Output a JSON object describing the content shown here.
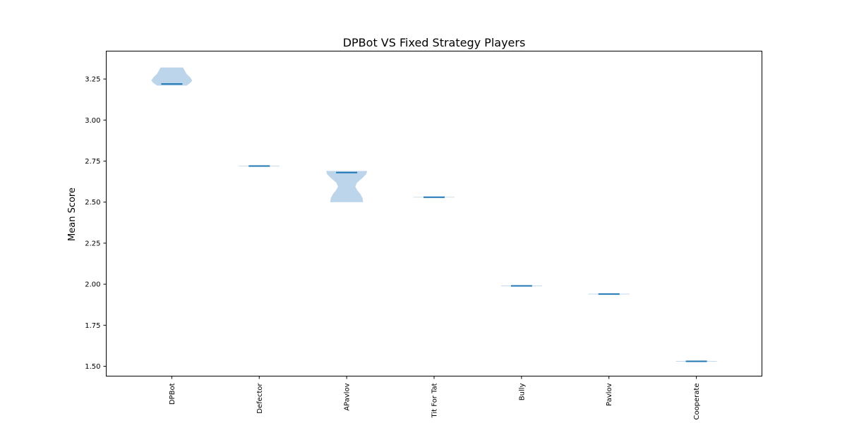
{
  "chart_data": {
    "type": "violin",
    "title": "DPBot VS Fixed Strategy Players",
    "xlabel": "",
    "ylabel": "Mean Score",
    "ylim": [
      1.44,
      3.42
    ],
    "yticks": [
      "1.50",
      "1.75",
      "2.00",
      "2.25",
      "2.50",
      "2.75",
      "3.00",
      "3.25"
    ],
    "grid": false,
    "categories": [
      "DPBot",
      "Defector",
      "APavlov",
      "Tit For Tat",
      "Bully",
      "Pavlov",
      "Cooperate"
    ],
    "medians": [
      3.22,
      2.72,
      2.68,
      2.53,
      1.99,
      1.94,
      1.53
    ],
    "ranges": [
      [
        3.21,
        3.32
      ],
      [
        2.72,
        2.72
      ],
      [
        2.5,
        2.69
      ],
      [
        2.53,
        2.53
      ],
      [
        1.99,
        1.99
      ],
      [
        1.94,
        1.94
      ],
      [
        1.53,
        1.53
      ]
    ],
    "colors": {
      "body": "#bcd5ea",
      "median": "#1f77b4",
      "axis": "#000000"
    }
  }
}
